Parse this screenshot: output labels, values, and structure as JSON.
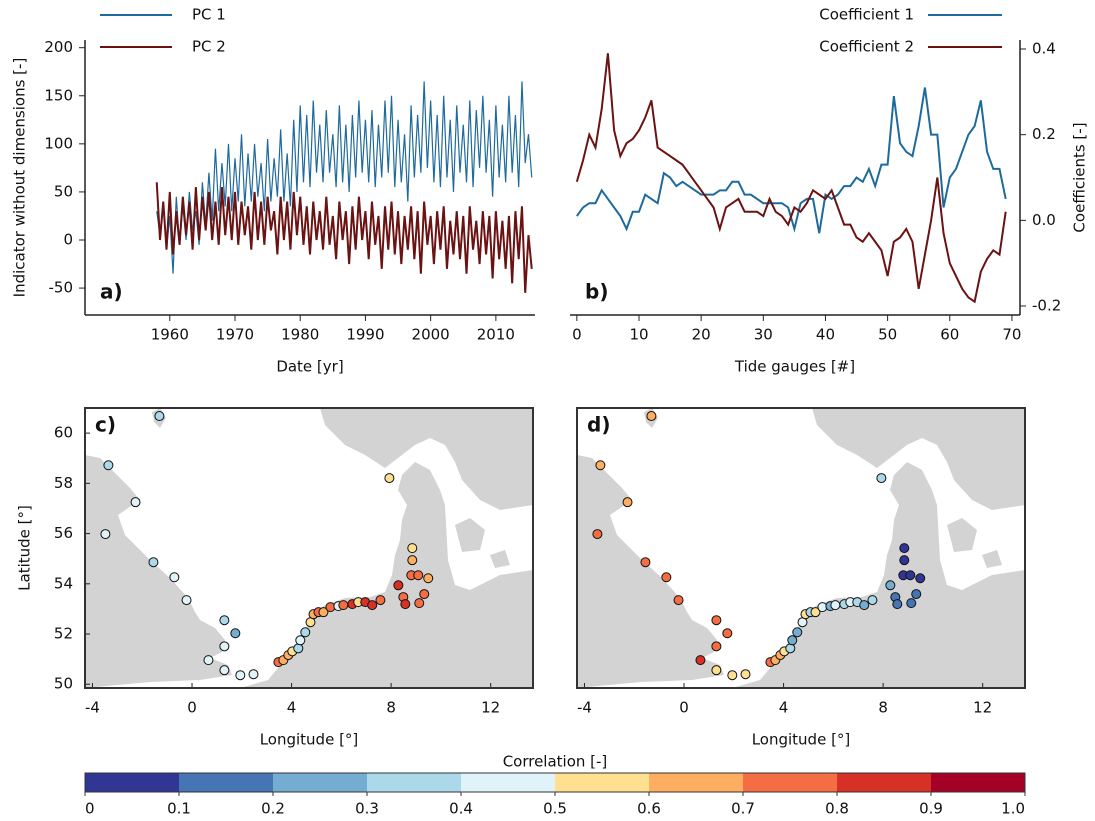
{
  "chart_data": [
    {
      "type": "line",
      "panel_label": "a)",
      "x_label": "Date [yr]",
      "y_label": "Indicator without dimensions [-]",
      "x": [
        1958,
        1958.5,
        1959,
        1959.5,
        1960,
        1960.5,
        1961,
        1961.5,
        1962,
        1962.5,
        1963,
        1963.5,
        1964,
        1964.5,
        1965,
        1965.5,
        1966,
        1966.5,
        1967,
        1967.5,
        1968,
        1968.5,
        1969,
        1969.5,
        1970,
        1970.5,
        1971,
        1971.5,
        1972,
        1972.5,
        1973,
        1973.5,
        1974,
        1974.5,
        1975,
        1975.5,
        1976,
        1976.5,
        1977,
        1977.5,
        1978,
        1978.5,
        1979,
        1979.5,
        1980,
        1980.5,
        1981,
        1981.5,
        1982,
        1982.5,
        1983,
        1983.5,
        1984,
        1984.5,
        1985,
        1985.5,
        1986,
        1986.5,
        1987,
        1987.5,
        1988,
        1988.5,
        1989,
        1989.5,
        1990,
        1990.5,
        1991,
        1991.5,
        1992,
        1992.5,
        1993,
        1993.5,
        1994,
        1994.5,
        1995,
        1995.5,
        1996,
        1996.5,
        1997,
        1997.5,
        1998,
        1998.5,
        1999,
        1999.5,
        2000,
        2000.5,
        2001,
        2001.5,
        2002,
        2002.5,
        2003,
        2003.5,
        2004,
        2004.5,
        2005,
        2005.5,
        2006,
        2006.5,
        2007,
        2007.5,
        2008,
        2008.5,
        2009,
        2009.5,
        2010,
        2010.5,
        2011,
        2011.5,
        2012,
        2012.5,
        2013,
        2013.5,
        2014,
        2014.5,
        2015,
        2015.5
      ],
      "series": [
        {
          "name": "PC 1",
          "color": "#1f6a9c",
          "values": [
            30,
            5,
            40,
            -10,
            25,
            -35,
            45,
            -5,
            35,
            0,
            50,
            10,
            30,
            -5,
            60,
            15,
            70,
            20,
            95,
            30,
            80,
            35,
            100,
            30,
            85,
            40,
            110,
            35,
            90,
            40,
            100,
            45,
            80,
            30,
            105,
            40,
            85,
            45,
            115,
            40,
            90,
            35,
            125,
            50,
            140,
            60,
            130,
            55,
            145,
            70,
            120,
            60,
            135,
            70,
            110,
            55,
            140,
            60,
            120,
            50,
            130,
            65,
            145,
            70,
            125,
            60,
            135,
            55,
            120,
            65,
            145,
            70,
            150,
            55,
            125,
            60,
            110,
            40,
            140,
            65,
            130,
            70,
            165,
            75,
            145,
            60,
            130,
            55,
            150,
            65,
            125,
            50,
            140,
            70,
            120,
            60,
            145,
            55,
            135,
            75,
            150,
            70,
            125,
            45,
            140,
            65,
            120,
            60,
            150,
            70,
            130,
            55,
            165,
            80,
            110,
            65
          ]
        },
        {
          "name": "PC 2",
          "color": "#6b1212",
          "values": [
            60,
            0,
            40,
            -10,
            50,
            -15,
            30,
            -5,
            45,
            5,
            40,
            -10,
            55,
            0,
            45,
            10,
            50,
            0,
            40,
            -5,
            55,
            5,
            45,
            0,
            50,
            -5,
            40,
            5,
            35,
            -10,
            50,
            0,
            40,
            -5,
            45,
            10,
            30,
            -15,
            45,
            0,
            40,
            -10,
            50,
            5,
            45,
            -5,
            35,
            -15,
            40,
            0,
            30,
            -10,
            45,
            -5,
            25,
            -20,
            40,
            0,
            30,
            -25,
            35,
            -10,
            45,
            0,
            30,
            -20,
            40,
            -5,
            25,
            -30,
            35,
            -10,
            40,
            -15,
            30,
            -25,
            25,
            -10,
            35,
            -20,
            30,
            -35,
            40,
            -5,
            25,
            -25,
            30,
            -10,
            35,
            -30,
            20,
            -15,
            30,
            -20,
            25,
            -35,
            35,
            -10,
            20,
            -25,
            30,
            -15,
            25,
            -40,
            30,
            -20,
            20,
            -30,
            25,
            -45,
            30,
            -20,
            35,
            -55,
            5,
            -30
          ]
        }
      ],
      "xlim": [
        1947,
        2016
      ],
      "ylim": [
        -78,
        208
      ],
      "xticks": [
        1960,
        1970,
        1980,
        1990,
        2000,
        2010
      ],
      "yticks": [
        -50,
        0,
        50,
        100,
        150,
        200
      ]
    },
    {
      "type": "line",
      "panel_label": "b)",
      "x_label": "Tide gauges [#]",
      "y2_label": "Coefficients [-]",
      "x": [
        0,
        1,
        2,
        3,
        4,
        5,
        6,
        7,
        8,
        9,
        10,
        11,
        12,
        13,
        14,
        15,
        16,
        17,
        18,
        19,
        20,
        21,
        22,
        23,
        24,
        25,
        26,
        27,
        28,
        29,
        30,
        31,
        32,
        33,
        34,
        35,
        36,
        37,
        38,
        39,
        40,
        41,
        42,
        43,
        44,
        45,
        46,
        47,
        48,
        49,
        50,
        51,
        52,
        53,
        54,
        55,
        56,
        57,
        58,
        59,
        60,
        61,
        62,
        63,
        64,
        65,
        66,
        67,
        68,
        69
      ],
      "series": [
        {
          "name": "Coefficient 1",
          "color": "#1f6a9c",
          "axis": "y2",
          "values": [
            0.01,
            0.03,
            0.04,
            0.04,
            0.07,
            0.05,
            0.03,
            0.01,
            -0.02,
            0.02,
            0.02,
            0.06,
            0.05,
            0.04,
            0.11,
            0.1,
            0.08,
            0.09,
            0.08,
            0.07,
            0.06,
            0.06,
            0.06,
            0.07,
            0.07,
            0.09,
            0.09,
            0.06,
            0.06,
            0.05,
            0.04,
            0.04,
            0.04,
            0.04,
            0.03,
            -0.02,
            0.04,
            0.05,
            0.05,
            -0.03,
            0.06,
            0.05,
            0.06,
            0.08,
            0.08,
            0.1,
            0.09,
            0.12,
            0.08,
            0.13,
            0.13,
            0.29,
            0.18,
            0.16,
            0.15,
            0.22,
            0.31,
            0.2,
            0.2,
            0.03,
            0.1,
            0.12,
            0.16,
            0.2,
            0.22,
            0.28,
            0.16,
            0.12,
            0.12,
            0.05
          ]
        },
        {
          "name": "Coefficient 2",
          "color": "#6b1212",
          "axis": "y2",
          "values": [
            0.09,
            0.14,
            0.2,
            0.17,
            0.26,
            0.39,
            0.21,
            0.15,
            0.18,
            0.19,
            0.21,
            0.24,
            0.28,
            0.17,
            0.16,
            0.15,
            0.14,
            0.13,
            0.11,
            0.09,
            0.07,
            0.05,
            0.03,
            -0.02,
            0.03,
            0.04,
            0.05,
            0.02,
            0.02,
            0.02,
            0.01,
            0.05,
            0.02,
            0.01,
            -0.01,
            0.03,
            0.02,
            0.04,
            0.07,
            0.06,
            0.05,
            0.07,
            0.03,
            -0.01,
            -0.01,
            -0.04,
            -0.05,
            -0.03,
            -0.05,
            -0.07,
            -0.13,
            -0.05,
            -0.04,
            -0.02,
            -0.05,
            -0.16,
            -0.08,
            0.0,
            0.1,
            -0.03,
            -0.1,
            -0.13,
            -0.16,
            -0.18,
            -0.19,
            -0.12,
            -0.09,
            -0.07,
            -0.08,
            0.02
          ]
        }
      ],
      "xlim": [
        -1.1,
        71.3
      ],
      "xticks": [
        0,
        10,
        20,
        30,
        40,
        50,
        60,
        70
      ],
      "y2lim": [
        -0.221,
        0.421
      ],
      "y2ticks": [
        -0.2,
        {
          "value": 0,
          "label": "0.0"
        },
        0.2,
        0.4
      ]
    },
    {
      "type": "map",
      "panel_label": "c)",
      "x_label": "Longitude [°]",
      "y_label": "Latitude [°]",
      "x": [
        -1.31,
        -3.36,
        -2.27,
        -3.48,
        -1.55,
        -0.71,
        -0.22,
        1.3,
        1.74,
        1.3,
        0.66,
        1.3,
        1.94,
        2.47,
        3.47,
        3.67,
        3.87,
        4.03,
        4.27,
        4.35,
        4.55,
        4.76,
        4.88,
        5.08,
        5.28,
        5.56,
        5.88,
        6.08,
        6.44,
        6.68,
        6.96,
        7.24,
        7.57,
        8.29,
        8.49,
        8.57,
        8.81,
        8.85,
        8.85,
        9.09,
        9.49,
        9.33,
        9.13,
        7.93
      ],
      "y": [
        60.68,
        58.72,
        57.25,
        55.98,
        54.86,
        54.26,
        53.35,
        52.55,
        52.03,
        51.51,
        50.96,
        50.56,
        50.36,
        50.4,
        50.88,
        50.96,
        51.16,
        51.31,
        51.43,
        51.75,
        52.07,
        52.47,
        52.79,
        52.87,
        52.87,
        53.07,
        53.11,
        53.15,
        53.19,
        53.27,
        53.27,
        53.15,
        53.35,
        53.94,
        53.47,
        53.19,
        54.34,
        54.94,
        55.42,
        54.34,
        54.22,
        53.59,
        53.23,
        58.21
      ],
      "values": [
        0.35,
        0.35,
        0.45,
        0.45,
        0.35,
        0.45,
        0.45,
        0.35,
        0.25,
        0.45,
        0.45,
        0.45,
        0.45,
        0.45,
        0.75,
        0.65,
        0.65,
        0.55,
        0.35,
        0.45,
        0.35,
        0.55,
        0.65,
        0.75,
        0.65,
        0.75,
        0.45,
        0.75,
        0.85,
        0.55,
        0.85,
        0.85,
        0.75,
        0.85,
        0.75,
        0.85,
        0.75,
        0.65,
        0.55,
        0.75,
        0.65,
        0.75,
        0.75,
        0.55
      ],
      "xlim": [
        -4.3,
        13.7
      ],
      "ylim": [
        49.85,
        61
      ],
      "xticks": [
        -4,
        0,
        4,
        8,
        12
      ],
      "yticks": [
        50,
        52,
        54,
        56,
        58,
        60
      ]
    },
    {
      "type": "map",
      "panel_label": "d)",
      "x_label": "Longitude [°]",
      "x": [
        -1.31,
        -3.36,
        -2.27,
        -3.48,
        -1.55,
        -0.71,
        -0.22,
        1.3,
        1.74,
        1.3,
        0.66,
        1.3,
        1.94,
        2.47,
        3.47,
        3.67,
        3.87,
        4.03,
        4.27,
        4.35,
        4.55,
        4.76,
        4.88,
        5.08,
        5.28,
        5.56,
        5.88,
        6.08,
        6.44,
        6.68,
        6.96,
        7.24,
        7.57,
        8.29,
        8.49,
        8.57,
        8.81,
        8.85,
        8.85,
        9.09,
        9.49,
        9.33,
        9.13,
        7.93
      ],
      "y": [
        60.68,
        58.72,
        57.25,
        55.98,
        54.86,
        54.26,
        53.35,
        52.55,
        52.03,
        51.51,
        50.96,
        50.56,
        50.36,
        50.4,
        50.88,
        50.96,
        51.16,
        51.31,
        51.43,
        51.75,
        52.07,
        52.47,
        52.79,
        52.87,
        52.87,
        53.07,
        53.11,
        53.15,
        53.19,
        53.27,
        53.27,
        53.15,
        53.35,
        53.94,
        53.47,
        53.19,
        54.34,
        54.94,
        55.42,
        54.34,
        54.22,
        53.59,
        53.23,
        58.21
      ],
      "values": [
        0.65,
        0.65,
        0.65,
        0.75,
        0.75,
        0.75,
        0.75,
        0.75,
        0.75,
        0.75,
        0.85,
        0.55,
        0.55,
        0.55,
        0.75,
        0.65,
        0.65,
        0.55,
        0.35,
        0.25,
        0.25,
        0.45,
        0.55,
        0.35,
        0.55,
        0.45,
        0.25,
        0.45,
        0.35,
        0.45,
        0.35,
        0.25,
        0.35,
        0.25,
        0.15,
        0.15,
        0.05,
        0.05,
        0.05,
        0.05,
        0.05,
        0.15,
        0.15,
        0.35
      ],
      "xlim": [
        -4.3,
        13.7
      ],
      "ylim": [
        49.85,
        61
      ],
      "xticks": [
        -4,
        0,
        4,
        8,
        12
      ]
    },
    {
      "type": "colorbar",
      "label": "Correlation [-]",
      "ticks": [
        0,
        0.1,
        0.2,
        0.3,
        0.4,
        0.5,
        0.6,
        0.7,
        0.8,
        0.9,
        {
          "value": 1,
          "label": "1.0"
        }
      ],
      "colors": [
        "#313695",
        "#4575b4",
        "#74add1",
        "#abd9e9",
        "#e0f3f8",
        "#fee090",
        "#fdae61",
        "#f46d43",
        "#d73027",
        "#a50026"
      ],
      "lim": [
        0,
        1
      ]
    }
  ]
}
